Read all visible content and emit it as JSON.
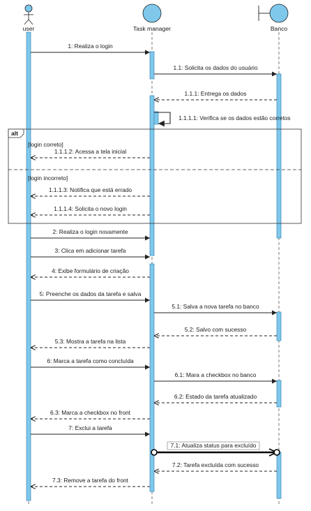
{
  "colors": {
    "activation": "#7fc8ec",
    "activation_stroke": "#3a86b4",
    "actor_fill": "#7fc8ec",
    "line": "#222222",
    "fragment": "#333333"
  },
  "participants": [
    {
      "id": "user",
      "label": "user",
      "shape": "actor"
    },
    {
      "id": "task",
      "label": "Task manager",
      "shape": "control"
    },
    {
      "id": "banco",
      "label": "Banco",
      "shape": "boundary"
    }
  ],
  "fragment": {
    "operator": "alt",
    "guards": [
      "[login correto]",
      "[login incorreto]"
    ]
  },
  "messages": [
    {
      "label": "1: Realiza o login",
      "from": "user",
      "to": "task",
      "kind": "sync"
    },
    {
      "label": "1.1: Solicita os dados do usuário",
      "from": "task",
      "to": "banco",
      "kind": "sync"
    },
    {
      "label": "1.1.1: Entrega os dados",
      "from": "banco",
      "to": "task",
      "kind": "reply"
    },
    {
      "label": "1.1.1.1: Verifica se os dados estão corretos",
      "from": "task",
      "to": "task",
      "kind": "self"
    },
    {
      "label": "1.1.1.2: Acessa a tela inicial",
      "from": "task",
      "to": "user",
      "kind": "reply"
    },
    {
      "label": "1.1.1.3: Notifica que está errado",
      "from": "task",
      "to": "user",
      "kind": "reply"
    },
    {
      "label": "1.1.1.4: Solicita o novo login",
      "from": "task",
      "to": "user",
      "kind": "reply"
    },
    {
      "label": "2: Realiza o login novamente",
      "from": "user",
      "to": "task",
      "kind": "sync"
    },
    {
      "label": "3: Clica em adicionar tarefa",
      "from": "user",
      "to": "task",
      "kind": "sync"
    },
    {
      "label": "4: Exibe formulário de criação",
      "from": "task",
      "to": "user",
      "kind": "reply"
    },
    {
      "label": "5: Preenche os dados da tarefa e salva",
      "from": "user",
      "to": "task",
      "kind": "sync"
    },
    {
      "label": "5.1: Salva a nova tarefa no banco",
      "from": "task",
      "to": "banco",
      "kind": "sync"
    },
    {
      "label": "5.2: Salvo com sucesso",
      "from": "banco",
      "to": "task",
      "kind": "reply"
    },
    {
      "label": "5.3: Mostra a tarefa na lista",
      "from": "task",
      "to": "user",
      "kind": "reply"
    },
    {
      "label": "6: Marca a tarefa como concluída",
      "from": "user",
      "to": "task",
      "kind": "sync"
    },
    {
      "label": "6.1: Mara a checkbox no banco",
      "from": "task",
      "to": "banco",
      "kind": "sync"
    },
    {
      "label": "6.2: Estado da tarefa atualizado",
      "from": "banco",
      "to": "task",
      "kind": "reply"
    },
    {
      "label": "6.3: Marca a checkbox no front",
      "from": "task",
      "to": "user",
      "kind": "reply"
    },
    {
      "label": "7: Exclui a tarefa",
      "from": "user",
      "to": "task",
      "kind": "sync"
    },
    {
      "label": "7.1: Atualiza status para excluído",
      "from": "task",
      "to": "banco",
      "kind": "selected"
    },
    {
      "label": "7.2: Tarefa excluída com sucesso",
      "from": "banco",
      "to": "task",
      "kind": "reply"
    },
    {
      "label": "7.3: Remove a tarefa do front",
      "from": "task",
      "to": "user",
      "kind": "reply"
    }
  ]
}
